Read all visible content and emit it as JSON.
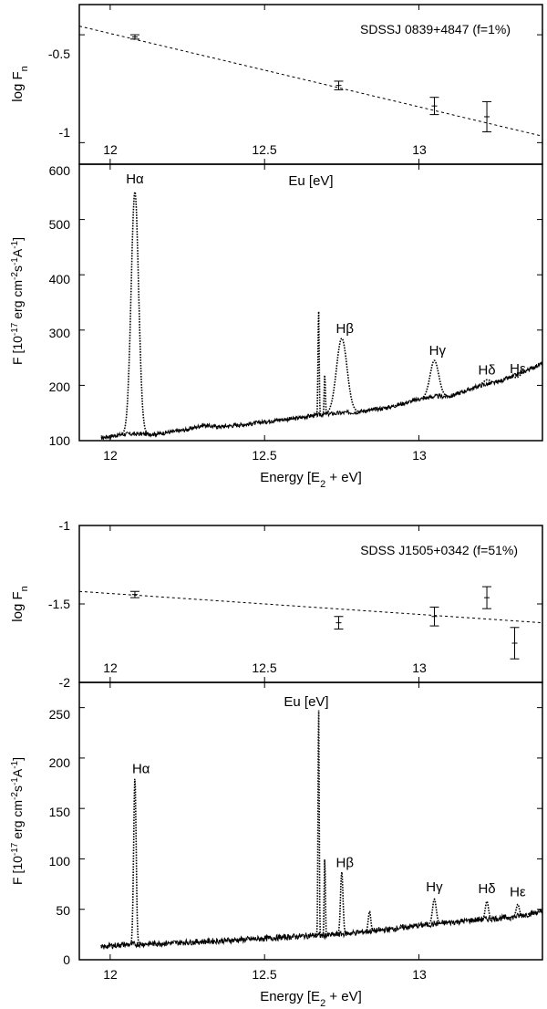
{
  "chart_data": [
    {
      "type": "scatter",
      "panel": "Photometry, SDSSJ 0839+4847",
      "annotation": "SDSSJ 0839+4847 (f=1%)",
      "xlabel": "Eu [eV]",
      "ylabel_main": "log F",
      "ylabel_sub": "n",
      "xlim": [
        11.9,
        13.4
      ],
      "ylim": [
        -1.1,
        -0.36
      ],
      "xticks": [
        "12",
        "12.5",
        "13"
      ],
      "yticks": [
        "-0.5",
        "-1"
      ],
      "points": [
        {
          "x": 12.08,
          "y": -0.51,
          "yerr": 0.01
        },
        {
          "x": 12.74,
          "y": -0.735,
          "yerr": 0.02
        },
        {
          "x": 13.05,
          "y": -0.83,
          "yerr": 0.04
        },
        {
          "x": 13.22,
          "y": -0.88,
          "yerr": 0.07
        }
      ],
      "fit": {
        "x": [
          11.9,
          13.4
        ],
        "y": [
          -0.46,
          -0.97
        ]
      }
    },
    {
      "type": "line",
      "panel": "Spectrum, SDSSJ 0839+4847",
      "xlabel_main": "Energy [E",
      "xlabel_sub": "2",
      "xlabel_tail": " + eV]",
      "ylabel_parts": [
        "F [10",
        "-17",
        " erg cm",
        "-2",
        "s",
        "-1",
        "A",
        "-1",
        "]"
      ],
      "xlim": [
        11.9,
        13.4
      ],
      "ylim": [
        100,
        600
      ],
      "xticks": [
        "12",
        "12.5",
        "13"
      ],
      "yticks": [
        "100",
        "200",
        "300",
        "400",
        "500",
        "600"
      ],
      "continuum_anchors": {
        "x": [
          11.97,
          12.0,
          12.05,
          12.15,
          12.25,
          12.3,
          12.35,
          12.45,
          12.55,
          12.6,
          12.65,
          12.7,
          12.8,
          12.9,
          13.0,
          13.05,
          13.1,
          13.15,
          13.2,
          13.25,
          13.3,
          13.4
        ],
        "y": [
          105,
          108,
          112,
          112,
          120,
          128,
          125,
          130,
          138,
          140,
          145,
          148,
          152,
          160,
          175,
          180,
          180,
          190,
          200,
          205,
          215,
          240
        ]
      },
      "lines": [
        {
          "label": "Hα",
          "x": 12.08,
          "peak": 550,
          "width": 0.012
        },
        {
          "label": "Hβ",
          "x": 12.75,
          "peak": 285,
          "width": 0.017
        },
        {
          "label": "Hγ",
          "x": 13.05,
          "peak": 245,
          "width": 0.014
        },
        {
          "label": "Hδ",
          "x": 13.22,
          "peak": 210,
          "width": 0.012
        },
        {
          "label": "Hε",
          "x": 13.32,
          "peak": 215,
          "width": 0.01
        },
        {
          "label": "",
          "x": 12.675,
          "peak": 340,
          "width": 0.0018
        },
        {
          "label": "",
          "x": 12.695,
          "peak": 220,
          "width": 0.0018
        }
      ],
      "label_positions": {
        "Hα": [
          12.08,
          565
        ],
        "Hβ": [
          12.76,
          295
        ],
        "Hγ": [
          13.06,
          255
        ],
        "Hδ": [
          13.22,
          220
        ],
        "Hε": [
          13.32,
          222
        ]
      }
    },
    {
      "type": "scatter",
      "panel": "Photometry, SDSS J1505+0342",
      "annotation": "SDSS J1505+0342 (f=51%)",
      "xlabel": "Eu [eV]",
      "ylabel_main": "log F",
      "ylabel_sub": "n",
      "xlim": [
        11.9,
        13.4
      ],
      "ylim": [
        -2.0,
        -1.0
      ],
      "xticks": [
        "12",
        "12.5",
        "13"
      ],
      "yticks": [
        "-1",
        "-1.5",
        "-2"
      ],
      "points": [
        {
          "x": 12.08,
          "y": -1.44,
          "yerr": 0.02
        },
        {
          "x": 12.74,
          "y": -1.62,
          "yerr": 0.04
        },
        {
          "x": 13.05,
          "y": -1.58,
          "yerr": 0.06
        },
        {
          "x": 13.22,
          "y": -1.46,
          "yerr": 0.07
        },
        {
          "x": 13.31,
          "y": -1.75,
          "yerr": 0.1
        }
      ],
      "fit": {
        "x": [
          11.9,
          13.4
        ],
        "y": [
          -1.42,
          -1.62
        ]
      }
    },
    {
      "type": "line",
      "panel": "Spectrum, SDSS J1505+0342",
      "xlabel_main": "Energy [E",
      "xlabel_sub": "2",
      "xlabel_tail": " + eV]",
      "ylabel_parts": [
        "F [10",
        "-17",
        " erg cm",
        "-2",
        "s",
        "-1",
        "A",
        "-1",
        "]"
      ],
      "xlim": [
        11.9,
        13.4
      ],
      "ylim": [
        0,
        275
      ],
      "xticks": [
        "12",
        "12.5",
        "13"
      ],
      "yticks": [
        "0",
        "50",
        "100",
        "150",
        "200",
        "250"
      ],
      "continuum_anchors": {
        "x": [
          11.97,
          12.0,
          12.05,
          12.15,
          12.3,
          12.5,
          12.65,
          12.7,
          12.8,
          12.9,
          13.0,
          13.1,
          13.2,
          13.3,
          13.4
        ],
        "y": [
          12,
          14,
          15,
          16,
          18,
          21,
          24,
          24,
          27,
          30,
          34,
          37,
          40,
          42,
          48
        ]
      },
      "lines": [
        {
          "label": "Hα",
          "x": 12.08,
          "peak": 180,
          "width": 0.004
        },
        {
          "label": "Hβ",
          "x": 12.75,
          "peak": 87,
          "width": 0.004
        },
        {
          "label": "Hγ",
          "x": 13.05,
          "peak": 60,
          "width": 0.006
        },
        {
          "label": "Hδ",
          "x": 13.22,
          "peak": 58,
          "width": 0.005
        },
        {
          "label": "Hε",
          "x": 13.32,
          "peak": 55,
          "width": 0.005
        },
        {
          "label": "",
          "x": 12.675,
          "peak": 255,
          "width": 0.0018
        },
        {
          "label": "",
          "x": 12.695,
          "peak": 102,
          "width": 0.0018
        },
        {
          "label": "",
          "x": 12.84,
          "peak": 48,
          "width": 0.004
        }
      ],
      "label_positions": {
        "Hα": [
          12.1,
          185
        ],
        "Hβ": [
          12.76,
          92
        ],
        "Hγ": [
          13.05,
          68
        ],
        "Hδ": [
          13.22,
          66
        ],
        "Hε": [
          13.32,
          63
        ]
      }
    }
  ]
}
